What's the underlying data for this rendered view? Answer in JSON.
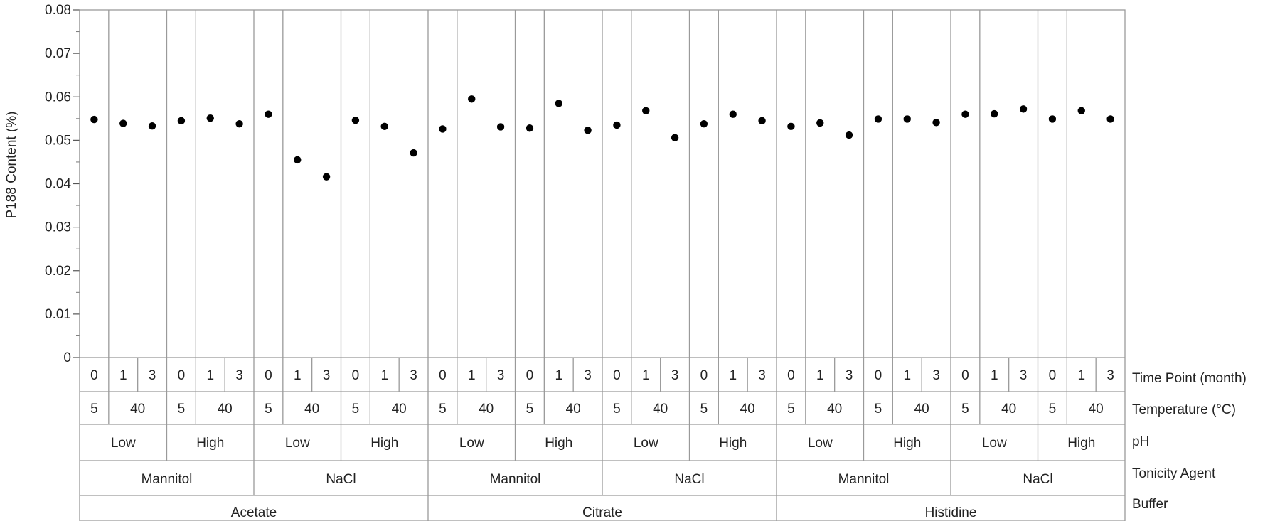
{
  "chart_data": {
    "type": "scatter",
    "ylabel": "P188 Content (%)",
    "ylim": [
      0,
      0.08
    ],
    "y_ticks": [
      "0",
      "0.01",
      "0.02",
      "0.03",
      "0.04",
      "0.05",
      "0.06",
      "0.07",
      "0.08"
    ],
    "y_tick_values": [
      0,
      0.01,
      0.02,
      0.03,
      0.04,
      0.05,
      0.06,
      0.07,
      0.08
    ],
    "factor_labels": {
      "time": "Time Point (month)",
      "temperature": "Temperature (°C)",
      "ph": "pH",
      "tonicity": "Tonicity Agent",
      "buffer": "Buffer"
    },
    "buffers": [
      "Acetate",
      "Citrate",
      "Histidine"
    ],
    "tonicity_agents": [
      "Mannitol",
      "NaCl"
    ],
    "ph_levels": [
      "Low",
      "High"
    ],
    "temperatures": [
      "5",
      "40"
    ],
    "time_points": [
      "0",
      "1",
      "3"
    ],
    "values": [
      0.0548,
      0.0539,
      0.0533,
      0.0545,
      0.0551,
      0.0538,
      0.056,
      0.0455,
      0.0416,
      0.0546,
      0.0532,
      0.0471,
      0.0526,
      0.0595,
      0.0531,
      0.0528,
      0.0585,
      0.0523,
      0.0535,
      0.0568,
      0.0506,
      0.0538,
      0.056,
      0.0545,
      0.0532,
      0.054,
      0.0512,
      0.0549,
      0.0549,
      0.0541,
      0.056,
      0.0561,
      0.0572,
      0.0549,
      0.0568,
      0.0549
    ],
    "grid": false
  }
}
